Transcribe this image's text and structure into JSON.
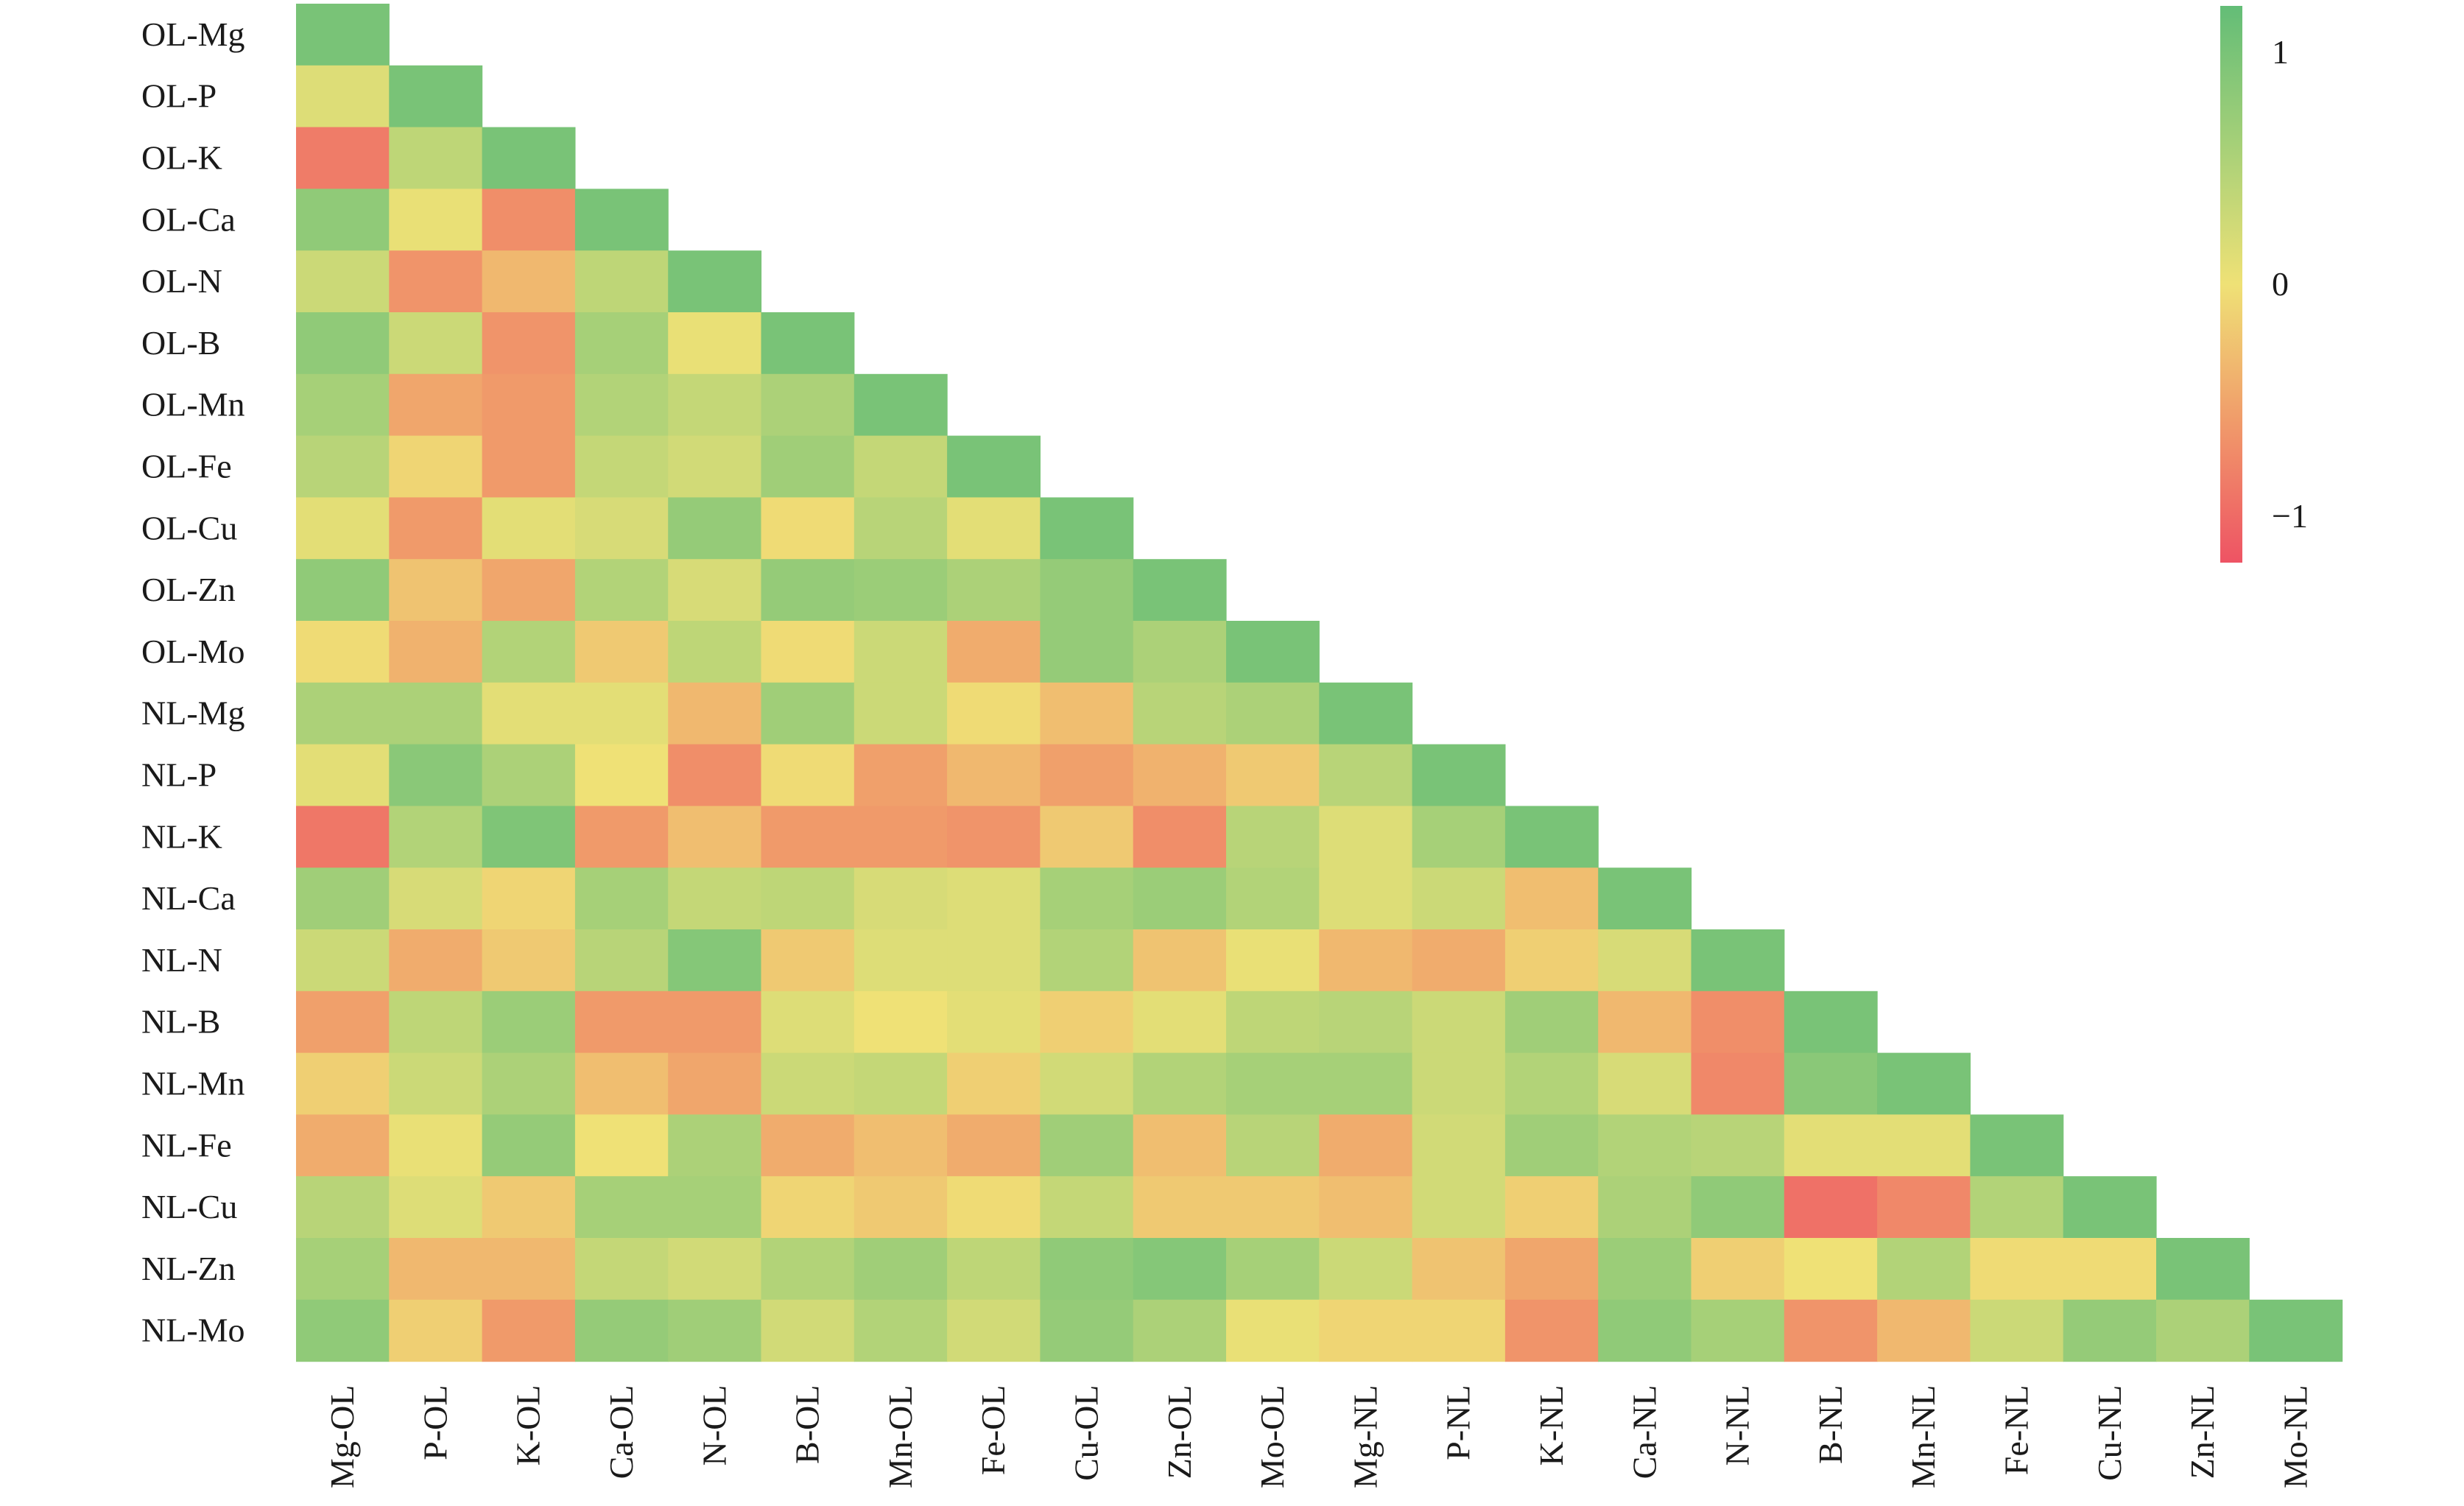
{
  "chart_data": {
    "type": "heatmap",
    "title": "",
    "xlabel": "",
    "ylabel": "",
    "row_labels": [
      "OL-Mg",
      "OL-P",
      "OL-K",
      "OL-Ca",
      "OL-N",
      "OL-B",
      "OL-Mn",
      "OL-Fe",
      "OL-Cu",
      "OL-Zn",
      "OL-Mo",
      "NL-Mg",
      "NL-P",
      "NL-K",
      "NL-Ca",
      "NL-N",
      "NL-B",
      "NL-Mn",
      "NL-Fe",
      "NL-Cu",
      "NL-Zn",
      "NL-Mo"
    ],
    "col_labels": [
      "Mg-OL",
      "P-OL",
      "K-OL",
      "Ca-OL",
      "N-OL",
      "B-OL",
      "Mn-OL",
      "Fe-OL",
      "Cu-OL",
      "Zn-OL",
      "Mo-OL",
      "Mg-NL",
      "P-NL",
      "K-NL",
      "Ca-NL",
      "N-NL",
      "B-NL",
      "Mn-NL",
      "Fe-NL",
      "Cu-NL",
      "Zn-NL",
      "Mo-NL"
    ],
    "lower_triangle": true,
    "values": [
      [
        1.0
      ],
      [
        0.15,
        1.0
      ],
      [
        -0.85,
        0.4,
        1.0
      ],
      [
        0.8,
        0.05,
        -0.7,
        1.0
      ],
      [
        0.3,
        -0.65,
        -0.35,
        0.4,
        1.0
      ],
      [
        0.8,
        0.3,
        -0.65,
        0.6,
        0.05,
        1.0
      ],
      [
        0.6,
        -0.5,
        -0.6,
        0.5,
        0.35,
        0.55,
        1.0
      ],
      [
        0.45,
        -0.1,
        -0.6,
        0.35,
        0.25,
        0.65,
        0.35,
        1.0
      ],
      [
        0.1,
        -0.6,
        0.1,
        0.2,
        0.75,
        -0.05,
        0.45,
        0.1,
        1.0
      ],
      [
        0.8,
        -0.25,
        -0.5,
        0.5,
        0.2,
        0.75,
        0.7,
        0.55,
        0.75,
        1.0
      ],
      [
        -0.05,
        -0.4,
        0.5,
        -0.2,
        0.4,
        -0.05,
        0.3,
        -0.45,
        0.75,
        0.55,
        1.0
      ],
      [
        0.55,
        0.55,
        0.1,
        0.1,
        -0.35,
        0.65,
        0.3,
        -0.05,
        -0.3,
        0.45,
        0.55,
        1.0
      ],
      [
        0.1,
        0.85,
        0.55,
        0.0,
        -0.7,
        -0.05,
        -0.55,
        -0.35,
        -0.55,
        -0.4,
        -0.2,
        0.45,
        1.0
      ],
      [
        -0.9,
        0.5,
        0.95,
        -0.6,
        -0.3,
        -0.6,
        -0.6,
        -0.65,
        -0.2,
        -0.7,
        0.45,
        0.15,
        0.6,
        1.0
      ],
      [
        0.65,
        0.2,
        -0.1,
        0.6,
        0.35,
        0.4,
        0.2,
        0.15,
        0.6,
        0.7,
        0.5,
        0.15,
        0.3,
        -0.3,
        1.0
      ],
      [
        0.3,
        -0.45,
        -0.2,
        0.45,
        0.9,
        -0.2,
        0.15,
        0.15,
        0.5,
        -0.25,
        0.05,
        -0.35,
        -0.45,
        -0.15,
        0.2,
        1.0
      ],
      [
        -0.55,
        0.4,
        0.7,
        -0.6,
        -0.6,
        0.15,
        0.0,
        0.1,
        -0.15,
        0.1,
        0.4,
        0.45,
        0.3,
        0.65,
        -0.35,
        -0.7,
        1.0
      ],
      [
        -0.15,
        0.3,
        0.55,
        -0.3,
        -0.5,
        0.3,
        0.35,
        -0.15,
        0.25,
        0.5,
        0.6,
        0.6,
        0.3,
        0.5,
        0.2,
        -0.75,
        0.85,
        1.0
      ],
      [
        -0.45,
        0.05,
        0.75,
        0.0,
        0.55,
        -0.45,
        -0.3,
        -0.45,
        0.65,
        -0.3,
        0.45,
        -0.45,
        0.25,
        0.65,
        0.5,
        0.45,
        0.1,
        0.1,
        1.0
      ],
      [
        0.45,
        0.15,
        -0.2,
        0.6,
        0.6,
        -0.1,
        -0.2,
        -0.05,
        0.35,
        -0.2,
        -0.2,
        -0.3,
        0.25,
        -0.15,
        0.55,
        0.8,
        -0.95,
        -0.75,
        0.5,
        1.0
      ],
      [
        0.6,
        -0.35,
        -0.35,
        0.35,
        0.25,
        0.5,
        0.65,
        0.4,
        0.8,
        0.9,
        0.6,
        0.3,
        -0.25,
        -0.5,
        0.7,
        -0.15,
        0.0,
        0.5,
        -0.05,
        -0.05,
        1.0
      ],
      [
        0.8,
        -0.15,
        -0.6,
        0.75,
        0.65,
        0.25,
        0.5,
        0.25,
        0.75,
        0.55,
        0.05,
        -0.1,
        -0.1,
        -0.65,
        0.8,
        0.6,
        -0.65,
        -0.35,
        0.3,
        0.75,
        0.55,
        1.0
      ]
    ],
    "colorbar": {
      "ticks": [
        {
          "value": 1,
          "label": "1"
        },
        {
          "value": 0,
          "label": "0"
        },
        {
          "value": -1,
          "label": "−1"
        }
      ],
      "range": [
        -1.2,
        1.2
      ],
      "colors": {
        "low": "#EE5364",
        "mid": "#EFE176",
        "high": "#63BD77"
      }
    }
  }
}
